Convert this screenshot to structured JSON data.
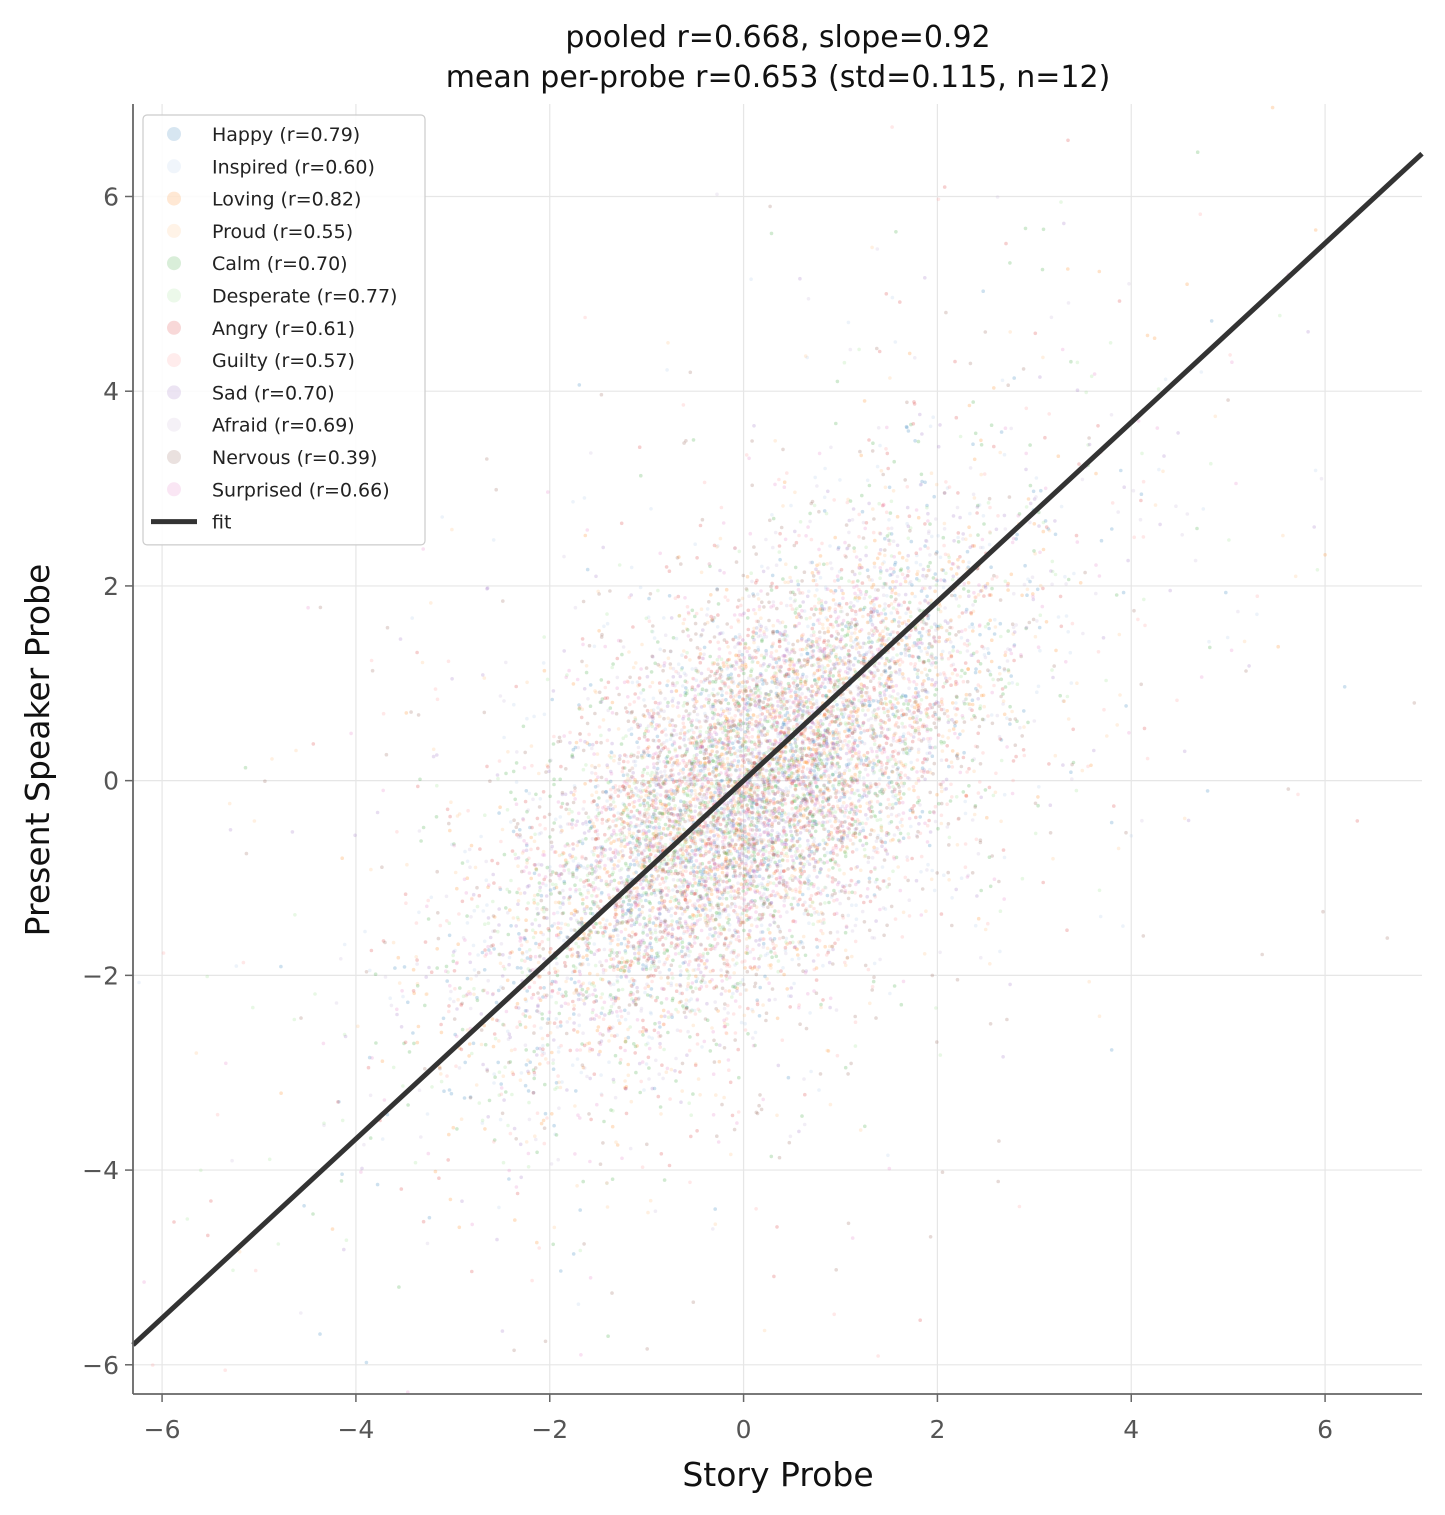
{
  "chart_data": {
    "type": "scatter",
    "title": "pooled r=0.668, slope=0.92",
    "subtitle": "mean per-probe r=0.653 (std=0.115, n=12)",
    "xlabel": "Story Probe",
    "ylabel": "Present Speaker Probe",
    "xlim": [
      -6.3,
      7.0
    ],
    "ylim": [
      -6.3,
      6.95
    ],
    "xticks": [
      -6,
      -4,
      -2,
      0,
      2,
      4,
      6
    ],
    "yticks": [
      -6,
      -4,
      -2,
      0,
      2,
      4,
      6
    ],
    "xtick_labels": [
      "−6",
      "−4",
      "−2",
      "0",
      "2",
      "4",
      "6"
    ],
    "ytick_labels": [
      "−6",
      "−4",
      "−2",
      "0",
      "2",
      "4",
      "6"
    ],
    "grid": true,
    "legend_position": "upper-left",
    "series": [
      {
        "name": "Happy (r=0.79)",
        "color": "#1f77b4",
        "r": 0.79
      },
      {
        "name": "Inspired (r=0.60)",
        "color": "#aec7e8",
        "r": 0.6
      },
      {
        "name": "Loving (r=0.82)",
        "color": "#ff7f0e",
        "r": 0.82
      },
      {
        "name": "Proud (r=0.55)",
        "color": "#ffbb78",
        "r": 0.55
      },
      {
        "name": "Calm (r=0.70)",
        "color": "#2ca02c",
        "r": 0.7
      },
      {
        "name": "Desperate (r=0.77)",
        "color": "#98df8a",
        "r": 0.77
      },
      {
        "name": "Angry (r=0.61)",
        "color": "#d62728",
        "r": 0.61
      },
      {
        "name": "Guilty (r=0.57)",
        "color": "#ff9896",
        "r": 0.57
      },
      {
        "name": "Sad (r=0.70)",
        "color": "#9467bd",
        "r": 0.7
      },
      {
        "name": "Afraid (r=0.69)",
        "color": "#c5b0d5",
        "r": 0.69
      },
      {
        "name": "Nervous (r=0.39)",
        "color": "#8c564b",
        "r": 0.39
      },
      {
        "name": "Surprised (r=0.66)",
        "color": "#e377c2",
        "r": 0.66
      }
    ],
    "fit": {
      "name": "fit",
      "slope": 0.92,
      "intercept": 0.0,
      "color": "#333333"
    },
    "pooled_r": 0.668,
    "mean_per_probe_r": 0.653,
    "std_per_probe_r": 0.115,
    "n_probes": 12
  }
}
